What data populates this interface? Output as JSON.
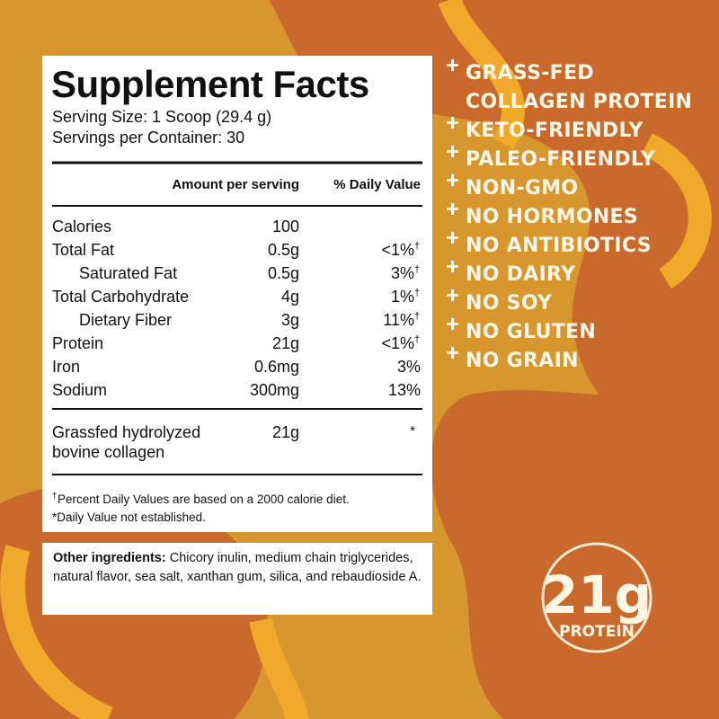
{
  "panel": {
    "title": "Supplement Facts",
    "serving_size": "Serving Size: 1 Scoop (29.4 g)",
    "servings_per_container": "Servings per Container: 30",
    "header": {
      "amount": "Amount per serving",
      "dv": "% Daily Value"
    },
    "rows": [
      {
        "name": "Calories",
        "amount": "100"
      },
      {
        "name": "Total Fat",
        "amount": "0.5g",
        "dv": "<1%",
        "dv_mark": "†"
      },
      {
        "name": "Saturated Fat",
        "amount": "0.5g",
        "dv": "3%",
        "dv_mark": "†",
        "indent": true
      },
      {
        "name": "Total Carbohydrate",
        "amount": "4g",
        "dv": "1%",
        "dv_mark": "†"
      },
      {
        "name": "Dietary Fiber",
        "amount": "3g",
        "dv": "11%",
        "dv_mark": "†",
        "indent": true
      },
      {
        "name": "Protein",
        "amount": "21g",
        "dv": "<1%",
        "dv_mark": "†"
      },
      {
        "name": "Iron",
        "amount": "0.6mg",
        "dv": "3%"
      },
      {
        "name": "Sodium",
        "amount": "300mg",
        "dv": "13%"
      }
    ],
    "other_row": {
      "name_lines": [
        "Grassfed hydrolyzed",
        "bovine collagen"
      ],
      "amount": "21g",
      "dv": "*"
    },
    "footnotes": [
      {
        "mark": "†",
        "text": "Percent Daily Values are based on a 2000 calorie diet."
      },
      {
        "text": "*Daily Value not established."
      }
    ]
  },
  "ingredients": {
    "label": "Other ingredients:",
    "text": "Chicory inulin, medium chain triglycerides, natural flavor, sea salt, xanthan gum, silica, and rebaudioside A."
  },
  "claims": [
    [
      "GRASS-FED",
      "COLLAGEN PROTEIN"
    ],
    [
      "KETO-FRIENDLY"
    ],
    [
      "PALEO-FRIENDLY"
    ],
    [
      "NON-GMO"
    ],
    [
      "NO HORMONES"
    ],
    [
      "NO ANTIBIOTICS"
    ],
    [
      "NO DAIRY"
    ],
    [
      "NO SOY"
    ],
    [
      "NO GLUTEN"
    ],
    [
      "NO GRAIN"
    ]
  ],
  "badge": {
    "amount": "21g",
    "label": "PROTEIN"
  }
}
